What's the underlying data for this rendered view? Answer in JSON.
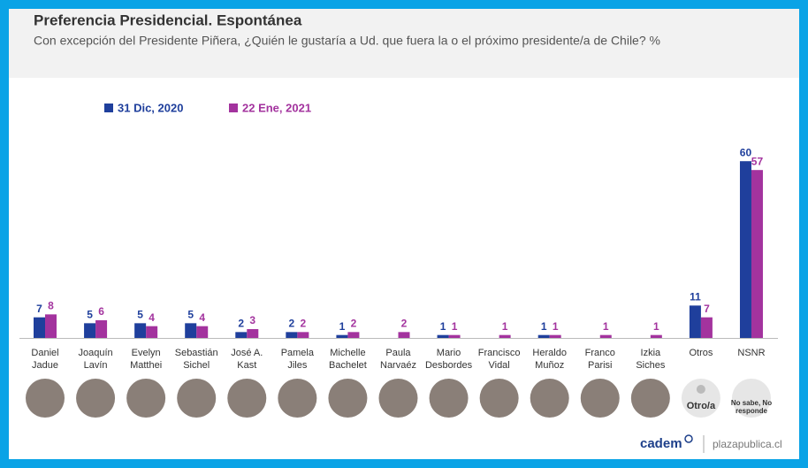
{
  "chart_data": {
    "type": "bar",
    "title": "Preferencia Presidencial. Espontánea",
    "subtitle": "Con excepción del Presidente Piñera, ¿Quién le gustaría a Ud. que fuera la o el próximo presidente/a de Chile? %",
    "categories": [
      "Daniel Jadue",
      "Joaquín Lavín",
      "Evelyn Matthei",
      "Sebastián Sichel",
      "José A. Kast",
      "Pamela Jiles",
      "Michelle Bachelet",
      "Paula Narvaéz",
      "Mario Desbordes",
      "Francisco Vidal",
      "Heraldo Muñoz",
      "Franco Parisi",
      "Izkia Siches",
      "Otros",
      "NSNR"
    ],
    "series": [
      {
        "name": "31 Dic, 2020",
        "color": "#1f3f9c",
        "values": [
          7,
          5,
          5,
          5,
          2,
          2,
          1,
          null,
          1,
          null,
          1,
          null,
          null,
          11,
          60
        ]
      },
      {
        "name": "22 Ene, 2021",
        "color": "#a3339e",
        "values": [
          8,
          6,
          4,
          4,
          3,
          2,
          2,
          2,
          1,
          1,
          1,
          1,
          1,
          7,
          57
        ]
      }
    ],
    "icon_labels": {
      "otros": "Otro/a",
      "nsnr": "No sabe, No responde"
    },
    "footer": {
      "brand": "cadem",
      "site": "plazapublica.cl"
    }
  }
}
